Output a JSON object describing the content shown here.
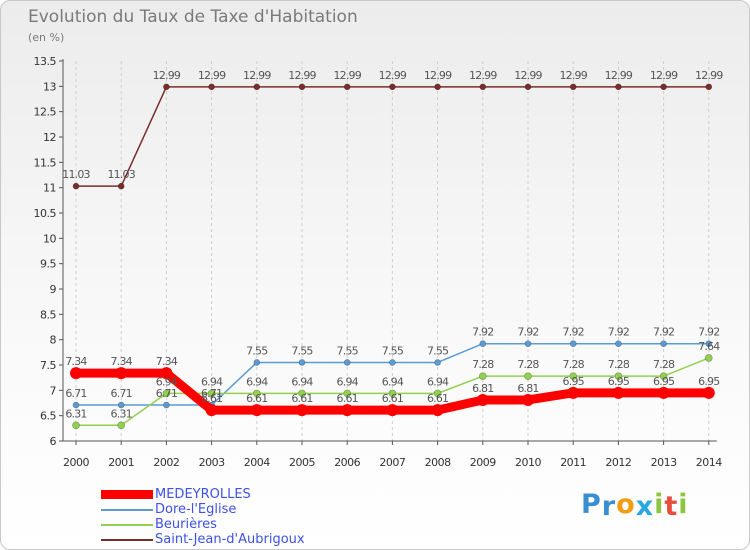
{
  "chart_data": {
    "type": "line",
    "title": "Evolution du Taux de Taxe d'Habitation",
    "ylabel": "(en %)",
    "xlabel": "",
    "x": [
      "2000",
      "2001",
      "2002",
      "2003",
      "2004",
      "2005",
      "2006",
      "2007",
      "2008",
      "2009",
      "2010",
      "2011",
      "2012",
      "2013",
      "2014"
    ],
    "ylim": [
      6,
      13.5
    ],
    "yticks": [
      "6",
      "6.5",
      "7",
      "7.5",
      "8",
      "8.5",
      "9",
      "9.5",
      "10",
      "10.5",
      "11",
      "11.5",
      "12",
      "12.5",
      "13",
      "13.5"
    ],
    "grid": "dashed-x-only",
    "legend_position": "bottom-left",
    "series": [
      {
        "name": "MEDEYROLLES",
        "color": "#ff0000",
        "values": [
          7.34,
          7.34,
          7.34,
          6.61,
          6.61,
          6.61,
          6.61,
          6.61,
          6.61,
          6.81,
          6.81,
          6.95,
          6.95,
          6.95,
          6.95
        ],
        "labels": [
          "7.34",
          "7.34",
          "7.34",
          "6.61",
          "6.61",
          "6.61",
          "6.61",
          "6.61",
          "6.61",
          "6.81",
          "6.81",
          "6.95",
          "6.95",
          "6.95",
          "6.95"
        ]
      },
      {
        "name": "Dore-l'Eglise",
        "color": "#5b9bd5",
        "values": [
          6.71,
          6.71,
          6.71,
          6.71,
          7.55,
          7.55,
          7.55,
          7.55,
          7.55,
          7.92,
          7.92,
          7.92,
          7.92,
          7.92,
          7.92
        ],
        "labels": [
          "6.71",
          "6.71",
          "6.71",
          "6.71",
          "7.55",
          "7.55",
          "7.55",
          "7.55",
          "7.55",
          "7.92",
          "7.92",
          "7.92",
          "7.92",
          "7.92",
          "7.92"
        ]
      },
      {
        "name": "Beurières",
        "color": "#92d050",
        "values": [
          6.31,
          6.31,
          6.94,
          6.94,
          6.94,
          6.94,
          6.94,
          6.94,
          6.94,
          7.28,
          7.28,
          7.28,
          7.28,
          7.28,
          7.64
        ],
        "labels": [
          "6.31",
          "6.31",
          "6.94",
          "6.94",
          "6.94",
          "6.94",
          "6.94",
          "6.94",
          "6.94",
          "7.28",
          "7.28",
          "7.28",
          "7.28",
          "7.28",
          "7.64"
        ]
      },
      {
        "name": "Saint-Jean-d'Aubrigoux",
        "color": "#7b2c2c",
        "values": [
          11.03,
          11.03,
          12.99,
          12.99,
          12.99,
          12.99,
          12.99,
          12.99,
          12.99,
          12.99,
          12.99,
          12.99,
          12.99,
          12.99,
          12.99
        ],
        "labels": [
          "11.03",
          "11.03",
          "12.99",
          "12.99",
          "12.99",
          "12.99",
          "12.99",
          "12.99",
          "12.99",
          "12.99",
          "12.99",
          "12.99",
          "12.99",
          "12.99",
          "12.99"
        ]
      }
    ]
  },
  "brand": {
    "letters": [
      "P",
      "r",
      "o",
      "x",
      "i",
      "t",
      "i"
    ],
    "colors": [
      "#3a8fd0",
      "#3a8fd0",
      "#f39c12",
      "#2aa7e0",
      "#8cc63f",
      "#e74c3c",
      "#8cc63f"
    ]
  }
}
